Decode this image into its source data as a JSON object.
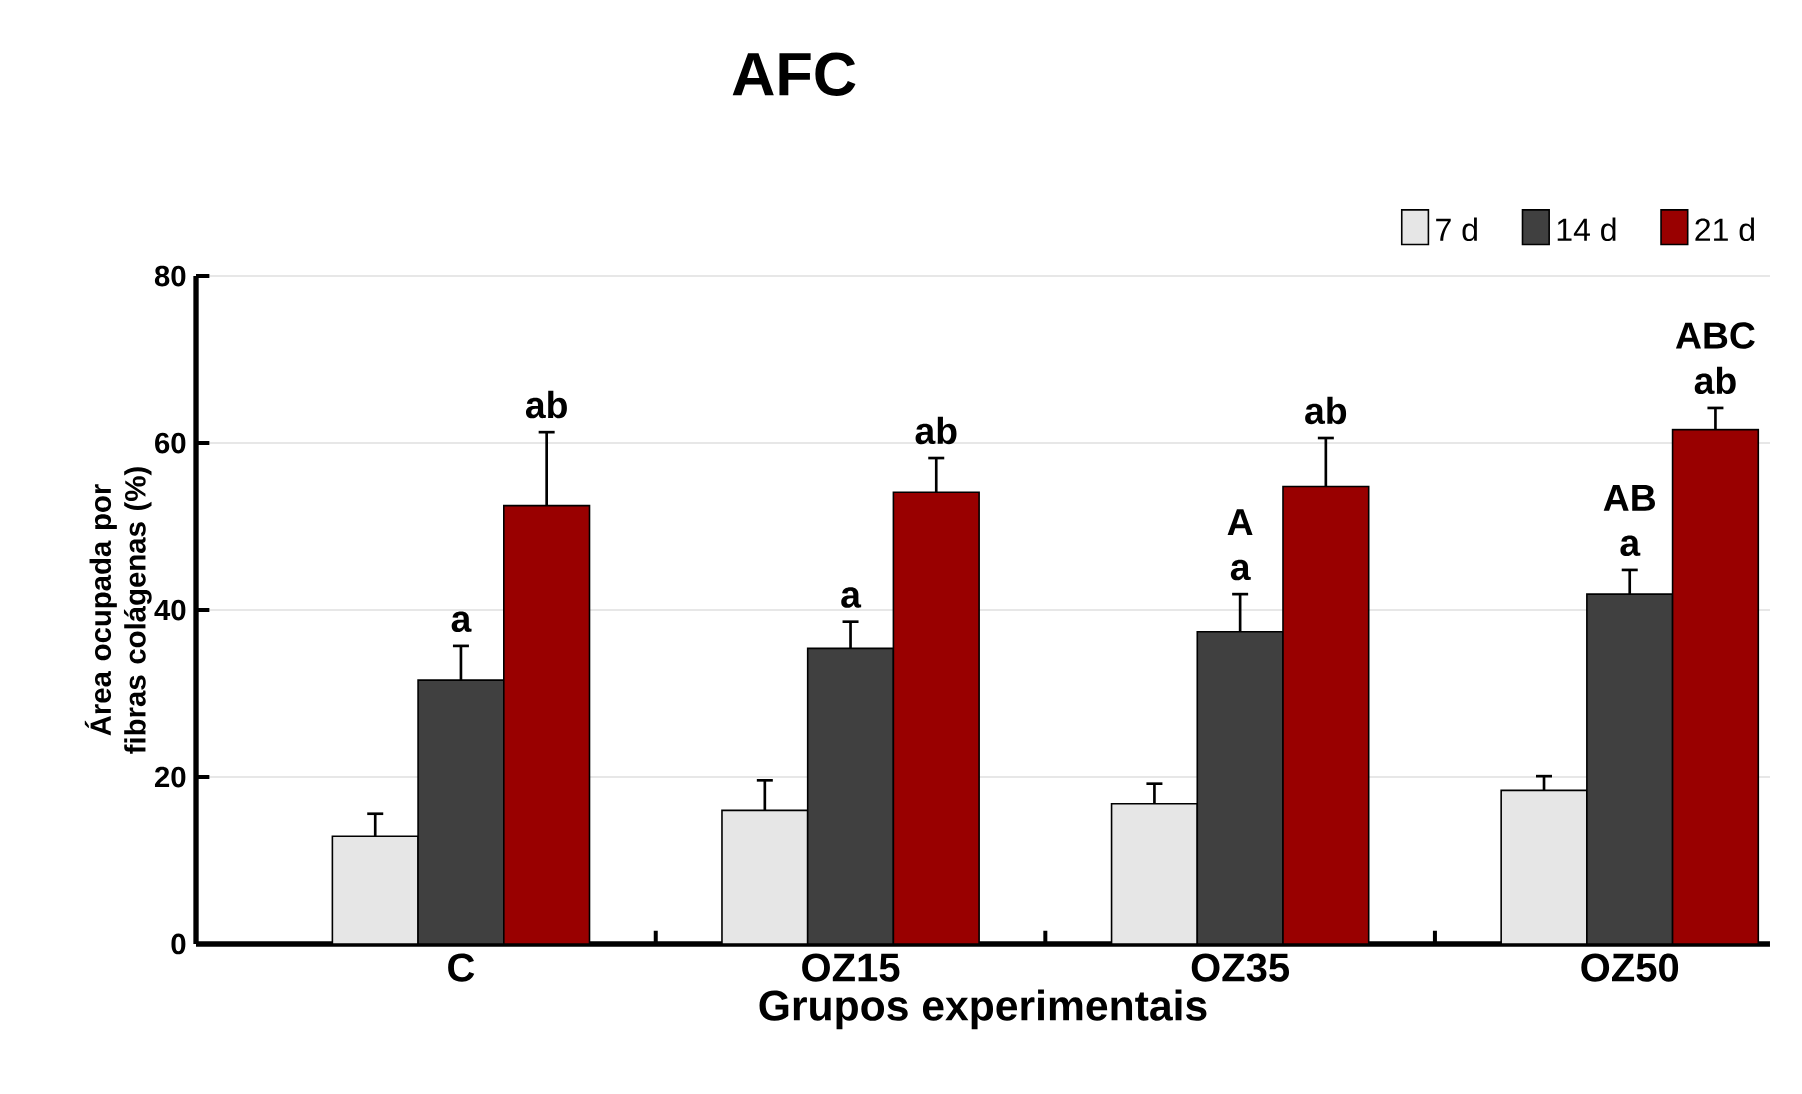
{
  "chart_data": {
    "type": "bar",
    "title": "AFC",
    "xlabel": "Grupos experimentais",
    "ylabel": "Área ocupada por fibras colágenas (%)",
    "categories": [
      "C",
      "OZ15",
      "OZ35",
      "OZ50"
    ],
    "series": [
      {
        "name": "7 d",
        "color": "#e6e6e6",
        "values": [
          12.9,
          16.0,
          16.8,
          18.4
        ],
        "errors": [
          [
            12.9,
            15.6
          ],
          [
            16.0,
            19.6
          ],
          [
            16.8,
            19.2
          ],
          [
            18.4,
            20.1
          ]
        ]
      },
      {
        "name": "14 d",
        "color": "#404040",
        "values": [
          31.6,
          35.4,
          37.4,
          41.9
        ],
        "errors": [
          [
            31.6,
            35.7
          ],
          [
            35.4,
            38.6
          ],
          [
            37.4,
            41.9
          ],
          [
            41.9,
            44.8
          ]
        ]
      },
      {
        "name": "21 d",
        "color": "#990000",
        "values": [
          52.5,
          54.1,
          54.8,
          61.6
        ],
        "errors": [
          [
            52.5,
            61.3
          ],
          [
            54.1,
            58.2
          ],
          [
            54.8,
            60.6
          ],
          [
            61.6,
            64.2
          ]
        ]
      }
    ],
    "annotations": [
      {
        "text": "a",
        "x": "C",
        "y": 31.6
      },
      "ab",
      {
        "text": "a",
        "x": "OZ15",
        "y": 35.4
      },
      "ab",
      {
        "text": "a",
        "x": "OZ35",
        "y": 37.4
      },
      {
        "text": "A",
        "x": "OZ35",
        "y": 37.4
      },
      "ab",
      {
        "text": "a",
        "x": "OZ50",
        "y": 41.9
      },
      {
        "text": "AB",
        "x": "OZ50",
        "y": 41.9
      },
      "ab",
      "ABC"
    ],
    "ylim": [
      0,
      80
    ],
    "yticks": [
      0,
      20,
      40,
      60,
      80
    ],
    "grid": "y",
    "legend": "top right"
  }
}
